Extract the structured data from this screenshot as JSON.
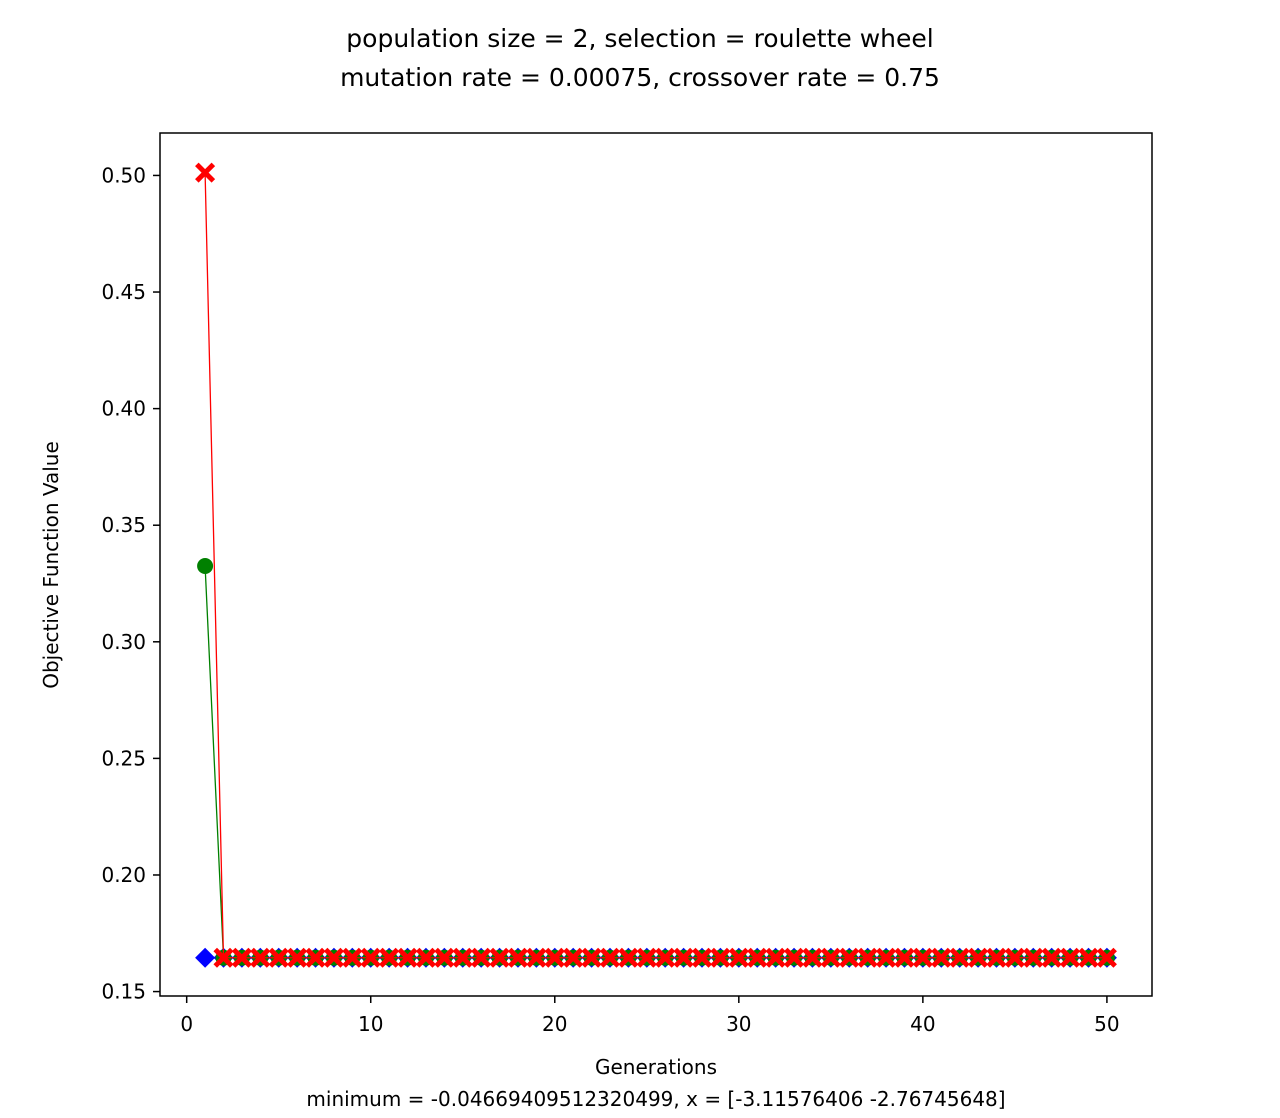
{
  "chart_data": {
    "type": "line",
    "title_line1": "population size = 2, selection = roulette wheel",
    "title_line2": "mutation rate = 0.00075, crossover rate = 0.75",
    "xlabel": "Generations",
    "footer": "minimum = -0.04669409512320499, x = [-3.11576406 -2.76745648]",
    "ylabel": "Objective Function Value",
    "xlim": [
      -1.45,
      52.45
    ],
    "ylim": [
      0.1481,
      0.5182
    ],
    "xticks": [
      0,
      10,
      20,
      30,
      40,
      50
    ],
    "xtick_labels": [
      "0",
      "10",
      "20",
      "30",
      "40",
      "50"
    ],
    "yticks": [
      0.15,
      0.2,
      0.25,
      0.3,
      0.35,
      0.4,
      0.45,
      0.5
    ],
    "ytick_labels": [
      "0.15",
      "0.20",
      "0.25",
      "0.30",
      "0.35",
      "0.40",
      "0.45",
      "0.50"
    ],
    "grid": false,
    "series": [
      {
        "color": "#0000ff",
        "marker": "diamond",
        "line": false,
        "first_value": 0.1645,
        "rest_value": 0.1645
      },
      {
        "color": "#008000",
        "marker": "circle",
        "line": true,
        "first_value": 0.3325,
        "rest_value": 0.1645
      },
      {
        "color": "#ff0000",
        "marker": "x",
        "line": true,
        "first_value": 0.5012,
        "rest_value": 0.1645
      }
    ],
    "generations": 50
  }
}
